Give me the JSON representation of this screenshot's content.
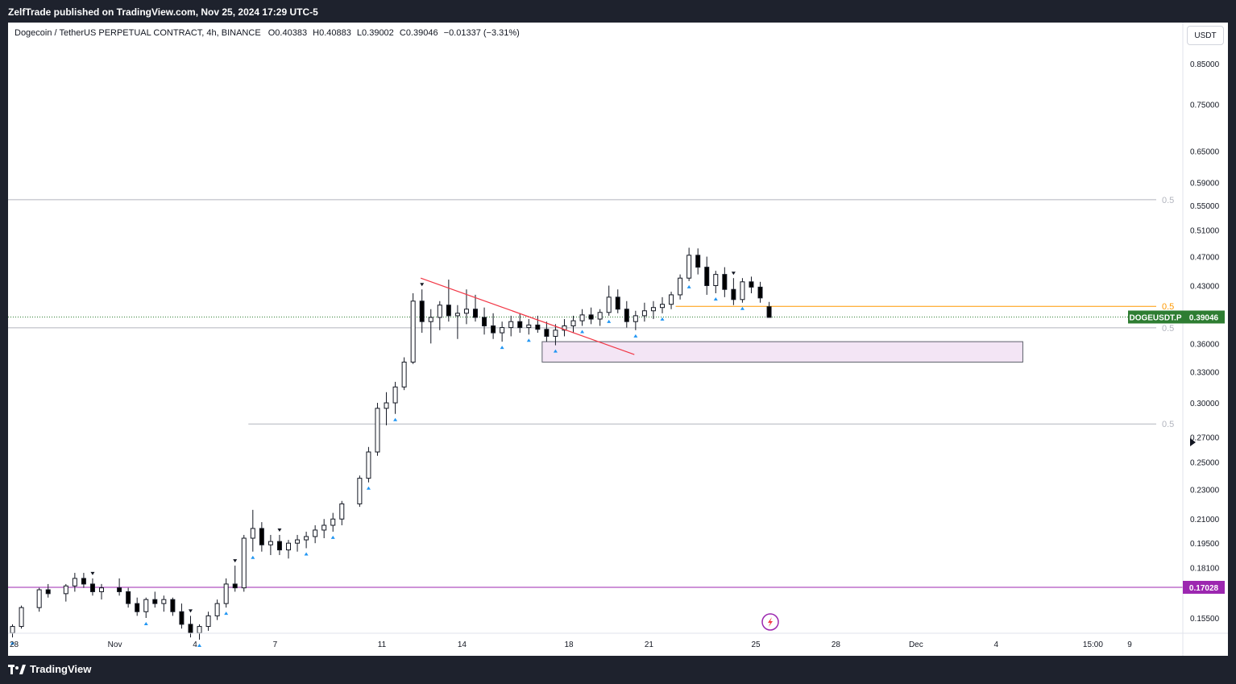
{
  "header": {
    "publisher_line": "ZelfTrade published on TradingView.com, Nov 25, 2024 17:29 UTC-5"
  },
  "legend": {
    "symbol": "Dogecoin / TetherUS PERPETUAL CONTRACT, 4h, BINANCE",
    "open_label": "O",
    "open": "0.40383",
    "high_label": "H",
    "high": "0.40883",
    "low_label": "L",
    "low": "0.39002",
    "close_label": "C",
    "close": "0.39046",
    "change": "−0.01337 (−3.31%)"
  },
  "currency_button": "USDT",
  "footer": {
    "brand": "TradingView"
  },
  "colors": {
    "up_candle": "#ffffff",
    "down_candle": "#000000",
    "trendline": "#f23645",
    "zone_fill": "#f3e5f5",
    "zone_border": "#5d606b",
    "support_line": "#9c27b0",
    "orange_line": "#ff9800",
    "price_label_bg": "#2e7d32",
    "support_label_bg": "#9c27b0",
    "signal_up": "#2196f3",
    "signal_down": "#131722"
  },
  "chart_data": {
    "type": "candlestick",
    "scale": "log",
    "y_ticks": [
      "0.85000",
      "0.75000",
      "0.65000",
      "0.59000",
      "0.55000",
      "0.51000",
      "0.47000",
      "0.43000",
      "0.36000",
      "0.33000",
      "0.30000",
      "0.27000",
      "0.25000",
      "0.23000",
      "0.21000",
      "0.19500",
      "0.18100",
      "0.15500"
    ],
    "x_ticks": [
      "28",
      "Nov",
      "4",
      "7",
      "11",
      "14",
      "18",
      "21",
      "25",
      "28",
      "Dec",
      "4",
      "15:00",
      "9"
    ],
    "x_tick_dates": [
      "2024-10-28",
      "2024-11-01",
      "2024-11-04",
      "2024-11-07",
      "2024-11-11",
      "2024-11-14",
      "2024-11-18",
      "2024-11-21",
      "2024-11-25",
      "2024-11-28",
      "2024-12-01",
      "2024-12-04",
      "2024-12-07T15:00",
      "2024-12-09"
    ],
    "ohlc": [
      [
        "2024-10-28",
        0.148,
        0.152,
        0.146,
        0.151
      ],
      [
        "2024-10-28",
        0.151,
        0.161,
        0.15,
        0.16
      ],
      [
        "2024-10-29",
        0.16,
        0.17,
        0.158,
        0.169
      ],
      [
        "2024-10-29",
        0.169,
        0.172,
        0.165,
        0.167
      ],
      [
        "2024-10-30",
        0.167,
        0.172,
        0.163,
        0.171
      ],
      [
        "2024-10-30",
        0.171,
        0.178,
        0.168,
        0.175
      ],
      [
        "2024-10-30",
        0.175,
        0.178,
        0.17,
        0.172
      ],
      [
        "2024-10-31",
        0.172,
        0.175,
        0.166,
        0.168
      ],
      [
        "2024-10-31",
        0.168,
        0.172,
        0.164,
        0.17
      ],
      [
        "2024-11-01",
        0.17,
        0.175,
        0.166,
        0.168
      ],
      [
        "2024-11-01",
        0.168,
        0.17,
        0.16,
        0.162
      ],
      [
        "2024-11-01",
        0.162,
        0.165,
        0.156,
        0.158
      ],
      [
        "2024-11-02",
        0.158,
        0.165,
        0.155,
        0.164
      ],
      [
        "2024-11-02",
        0.164,
        0.168,
        0.16,
        0.162
      ],
      [
        "2024-11-02",
        0.162,
        0.166,
        0.158,
        0.164
      ],
      [
        "2024-11-03",
        0.164,
        0.165,
        0.156,
        0.158
      ],
      [
        "2024-11-03",
        0.158,
        0.162,
        0.15,
        0.152
      ],
      [
        "2024-11-03",
        0.152,
        0.156,
        0.146,
        0.148
      ],
      [
        "2024-11-04",
        0.148,
        0.152,
        0.145,
        0.151
      ],
      [
        "2024-11-04",
        0.151,
        0.158,
        0.149,
        0.156
      ],
      [
        "2024-11-04",
        0.156,
        0.164,
        0.154,
        0.162
      ],
      [
        "2024-11-05",
        0.162,
        0.175,
        0.16,
        0.172
      ],
      [
        "2024-11-05",
        0.172,
        0.182,
        0.168,
        0.17
      ],
      [
        "2024-11-05",
        0.17,
        0.2,
        0.168,
        0.198
      ],
      [
        "2024-11-06",
        0.198,
        0.216,
        0.19,
        0.204
      ],
      [
        "2024-11-06",
        0.204,
        0.208,
        0.19,
        0.194
      ],
      [
        "2024-11-06",
        0.194,
        0.2,
        0.188,
        0.196
      ],
      [
        "2024-11-07",
        0.196,
        0.2,
        0.188,
        0.191
      ],
      [
        "2024-11-07",
        0.191,
        0.197,
        0.186,
        0.195
      ],
      [
        "2024-11-07",
        0.195,
        0.2,
        0.19,
        0.197
      ],
      [
        "2024-11-08",
        0.197,
        0.202,
        0.192,
        0.199
      ],
      [
        "2024-11-08",
        0.199,
        0.206,
        0.195,
        0.203
      ],
      [
        "2024-11-08",
        0.203,
        0.21,
        0.198,
        0.206
      ],
      [
        "2024-11-09",
        0.206,
        0.214,
        0.202,
        0.21
      ],
      [
        "2024-11-09",
        0.21,
        0.222,
        0.206,
        0.22
      ],
      [
        "2024-11-10",
        0.22,
        0.24,
        0.218,
        0.238
      ],
      [
        "2024-11-10",
        0.238,
        0.262,
        0.235,
        0.258
      ],
      [
        "2024-11-10",
        0.258,
        0.3,
        0.255,
        0.295
      ],
      [
        "2024-11-11",
        0.295,
        0.31,
        0.28,
        0.3
      ],
      [
        "2024-11-11",
        0.3,
        0.32,
        0.29,
        0.315
      ],
      [
        "2024-11-11",
        0.315,
        0.345,
        0.312,
        0.34
      ],
      [
        "2024-11-12",
        0.34,
        0.42,
        0.338,
        0.41
      ],
      [
        "2024-11-12",
        0.41,
        0.425,
        0.372,
        0.385
      ],
      [
        "2024-11-12",
        0.385,
        0.4,
        0.36,
        0.39
      ],
      [
        "2024-11-13",
        0.39,
        0.41,
        0.375,
        0.405
      ],
      [
        "2024-11-13",
        0.405,
        0.438,
        0.385,
        0.392
      ],
      [
        "2024-11-13",
        0.392,
        0.405,
        0.365,
        0.395
      ],
      [
        "2024-11-14",
        0.395,
        0.425,
        0.382,
        0.4
      ],
      [
        "2024-11-14",
        0.4,
        0.418,
        0.385,
        0.39
      ],
      [
        "2024-11-14",
        0.39,
        0.402,
        0.37,
        0.38
      ],
      [
        "2024-11-15",
        0.38,
        0.395,
        0.365,
        0.372
      ],
      [
        "2024-11-15",
        0.372,
        0.385,
        0.362,
        0.378
      ],
      [
        "2024-11-15",
        0.378,
        0.392,
        0.368,
        0.385
      ],
      [
        "2024-11-16",
        0.385,
        0.395,
        0.372,
        0.378
      ],
      [
        "2024-11-16",
        0.378,
        0.388,
        0.37,
        0.381
      ],
      [
        "2024-11-16",
        0.381,
        0.392,
        0.372,
        0.376
      ],
      [
        "2024-11-17",
        0.376,
        0.385,
        0.362,
        0.368
      ],
      [
        "2024-11-17",
        0.368,
        0.382,
        0.358,
        0.375
      ],
      [
        "2024-11-17",
        0.375,
        0.388,
        0.368,
        0.38
      ],
      [
        "2024-11-18",
        0.38,
        0.392,
        0.372,
        0.386
      ],
      [
        "2024-11-18",
        0.386,
        0.4,
        0.38,
        0.393
      ],
      [
        "2024-11-18",
        0.393,
        0.402,
        0.382,
        0.388
      ],
      [
        "2024-11-19",
        0.388,
        0.4,
        0.38,
        0.396
      ],
      [
        "2024-11-19",
        0.396,
        0.43,
        0.392,
        0.415
      ],
      [
        "2024-11-19",
        0.415,
        0.425,
        0.395,
        0.4
      ],
      [
        "2024-11-20",
        0.4,
        0.41,
        0.378,
        0.385
      ],
      [
        "2024-11-20",
        0.385,
        0.398,
        0.375,
        0.392
      ],
      [
        "2024-11-20",
        0.392,
        0.408,
        0.385,
        0.398
      ],
      [
        "2024-11-21",
        0.398,
        0.41,
        0.388,
        0.402
      ],
      [
        "2024-11-21",
        0.402,
        0.415,
        0.395,
        0.406
      ],
      [
        "2024-11-21",
        0.406,
        0.422,
        0.4,
        0.418
      ],
      [
        "2024-11-22",
        0.418,
        0.445,
        0.412,
        0.44
      ],
      [
        "2024-11-22",
        0.44,
        0.483,
        0.436,
        0.472
      ],
      [
        "2024-11-22",
        0.472,
        0.482,
        0.445,
        0.455
      ],
      [
        "2024-11-23",
        0.455,
        0.47,
        0.418,
        0.43
      ],
      [
        "2024-11-23",
        0.43,
        0.45,
        0.42,
        0.445
      ],
      [
        "2024-11-23",
        0.445,
        0.455,
        0.415,
        0.425
      ],
      [
        "2024-11-24",
        0.425,
        0.44,
        0.405,
        0.412
      ],
      [
        "2024-11-24",
        0.412,
        0.44,
        0.408,
        0.435
      ],
      [
        "2024-11-24",
        0.435,
        0.442,
        0.42,
        0.428
      ],
      [
        "2024-11-25",
        0.428,
        0.435,
        0.408,
        0.414
      ],
      [
        "2024-11-25",
        0.403,
        0.409,
        0.39,
        0.39
      ]
    ],
    "annotations": {
      "trendline_start": {
        "date": "2024-11-12",
        "price": 0.44
      },
      "trendline_end": {
        "date": "2024-11-20",
        "price": 0.348
      },
      "zone": {
        "from": "2024-11-17",
        "to": "2024-12-05",
        "top": 0.362,
        "bottom": 0.34
      },
      "horizontal_lines": [
        {
          "price": 0.5597,
          "label": "0.5",
          "from": "2024-10-28",
          "color": "#b2b5be"
        },
        {
          "price": 0.3777,
          "label": "0.5",
          "from": "2024-10-28",
          "color": "#b2b5be"
        },
        {
          "price": 0.2812,
          "label": "0.5",
          "from": "2024-11-06",
          "color": "#b2b5be"
        },
        {
          "price": 0.4035,
          "label": "0.5",
          "from": "2024-11-22",
          "color": "#ff9800"
        },
        {
          "price": 0.17028,
          "label": "0.17028",
          "from": "2024-10-28",
          "color": "#9c27b0"
        }
      ],
      "last_price": {
        "symbol": "DOGEUSDT.P",
        "value": "0.39046",
        "price": 0.39046
      }
    }
  }
}
